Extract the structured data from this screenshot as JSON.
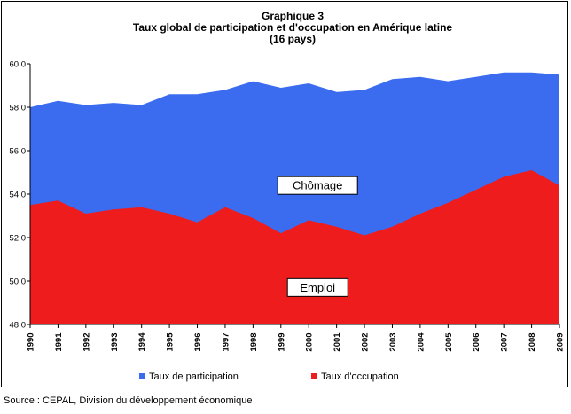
{
  "chart_data": {
    "type": "area",
    "title_lines": [
      "Graphique 3",
      "Taux global de participation et d'occupation en Amérique latine",
      "(16 pays)"
    ],
    "x": [
      "1990",
      "1991",
      "1992",
      "1993",
      "1994",
      "1995",
      "1996",
      "1997",
      "1998",
      "1999",
      "2000",
      "2001",
      "2002",
      "2003",
      "2004",
      "2005",
      "2006",
      "2007",
      "2008",
      "2009"
    ],
    "series": [
      {
        "name": "Taux de participation",
        "color": "#3b6cf0",
        "values": [
          58.0,
          58.3,
          58.1,
          58.2,
          58.1,
          58.6,
          58.6,
          58.8,
          59.2,
          58.9,
          59.1,
          58.7,
          58.8,
          59.3,
          59.4,
          59.2,
          59.4,
          59.6,
          59.6,
          59.5
        ]
      },
      {
        "name": "Taux d'occupation",
        "color": "#ee1c1c",
        "values": [
          53.5,
          53.7,
          53.1,
          53.3,
          53.4,
          53.1,
          52.7,
          53.4,
          52.9,
          52.2,
          52.8,
          52.5,
          52.1,
          52.5,
          53.1,
          53.6,
          54.2,
          54.8,
          55.1,
          54.4
        ]
      }
    ],
    "ylim": [
      48.0,
      60.0
    ],
    "yticks": [
      "48.0",
      "50.0",
      "52.0",
      "54.0",
      "56.0",
      "58.0",
      "60.0"
    ],
    "annotations": [
      {
        "text": "Chômage",
        "x": "2000",
        "y": 54.4
      },
      {
        "text": "Emploi",
        "x": "2000",
        "y": 49.7
      }
    ],
    "legend_position": "bottom",
    "grid": false
  },
  "footer": {
    "source": "Source : CEPAL, Division du développement économique"
  }
}
